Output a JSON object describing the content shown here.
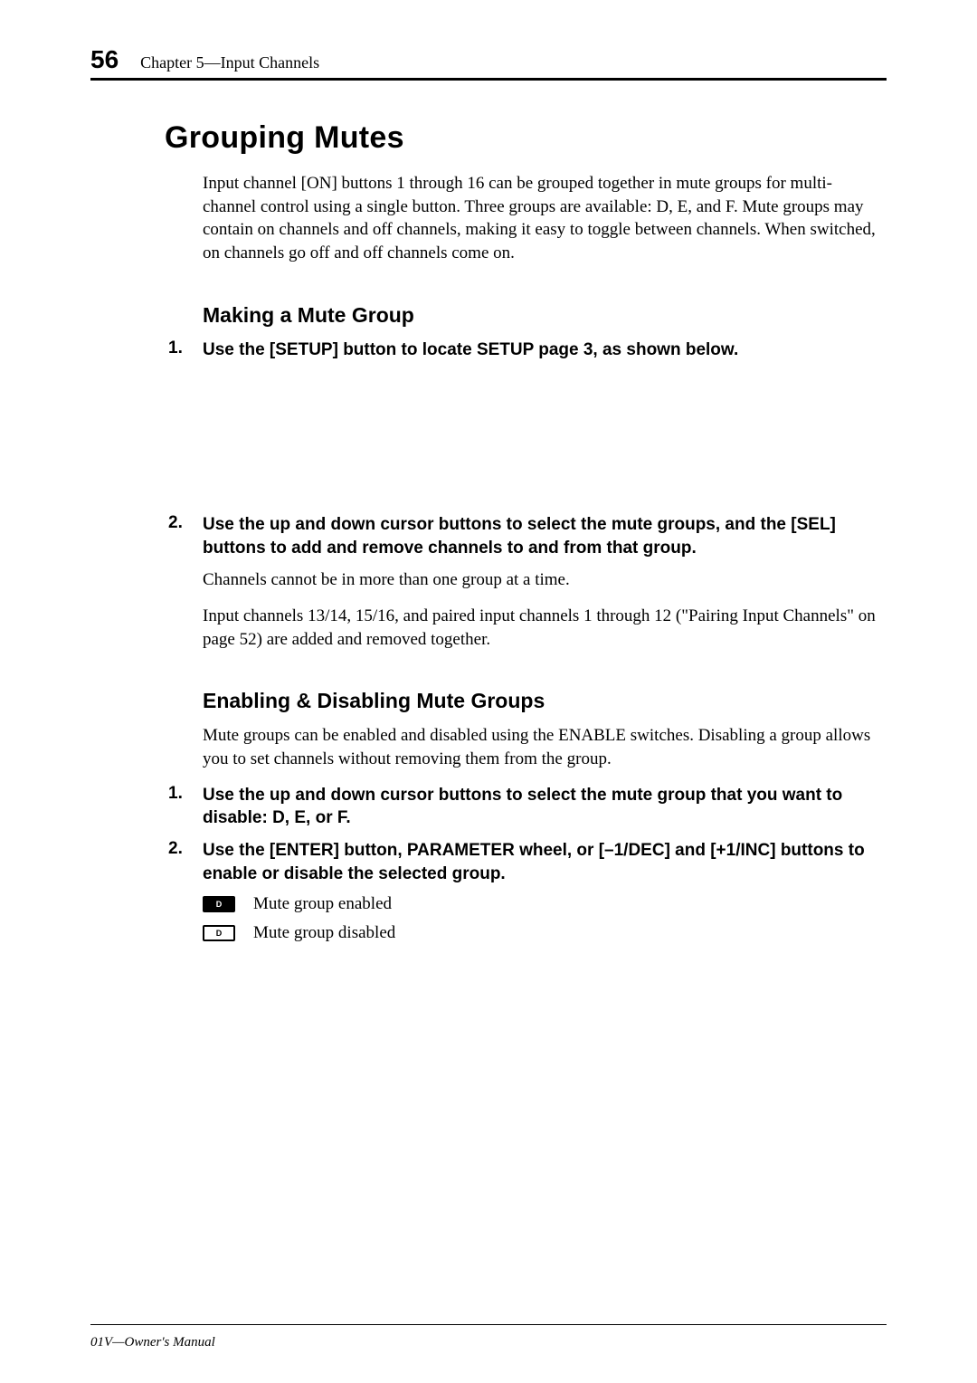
{
  "page": {
    "number": "56",
    "chapter": "Chapter 5—Input Channels",
    "footer": "01V—Owner's Manual"
  },
  "h1": "Grouping Mutes",
  "intro": "Input channel [ON] buttons 1 through 16 can be grouped together in mute groups for multi-channel control using a single button. Three groups are available: D, E, and F. Mute groups may contain on channels and off channels, making it easy to toggle between channels. When switched, on channels go off and off channels come on.",
  "section1": {
    "title": "Making a Mute Group",
    "step1": "Use the [SETUP] button to locate SETUP page 3, as shown below.",
    "step2": "Use the up and down cursor buttons to select the mute groups, and the [SEL] buttons to add and remove channels to and from that group.",
    "note1": "Channels cannot be in more than one group at a time.",
    "note2": "Input channels 13/14, 15/16, and paired input channels 1 through 12 (\"Pairing Input Channels\" on page 52) are added and removed together."
  },
  "section2": {
    "title": "Enabling & Disabling Mute Groups",
    "intro": "Mute groups can be enabled and disabled using the ENABLE switches. Disabling a group allows you to set channels without removing them from the group.",
    "step1": "Use the up and down cursor buttons to select the mute group that you want to disable: D, E, or F.",
    "step2": "Use the [ENTER] button, PARAMETER wheel, or [–1/DEC] and [+1/INC] buttons to enable or disable the selected group.",
    "legend_enabled": "Mute group enabled",
    "legend_disabled": "Mute group disabled",
    "icon_letter": "D"
  },
  "list_numbers": {
    "n1": "1.",
    "n2": "2."
  }
}
